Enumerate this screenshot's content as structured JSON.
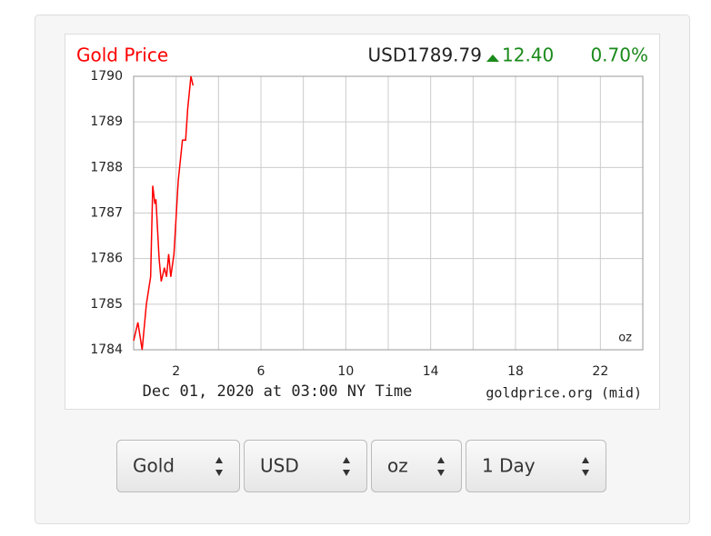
{
  "chart_data": {
    "type": "line",
    "title": "Gold Price",
    "price": "USD1789.79",
    "change": "12.40",
    "change_pct": "0.70%",
    "x": [
      0,
      0.2,
      0.4,
      0.6,
      0.8,
      0.9,
      1.0,
      1.05,
      1.2,
      1.3,
      1.45,
      1.55,
      1.65,
      1.75,
      1.9,
      2.1,
      2.3,
      2.45,
      2.55,
      2.7,
      2.8
    ],
    "series": [
      {
        "color": "#ff0000",
        "values": [
          1784.2,
          1784.6,
          1784.0,
          1785.0,
          1785.6,
          1787.6,
          1787.2,
          1787.3,
          1786.0,
          1785.5,
          1785.8,
          1785.6,
          1786.1,
          1785.6,
          1786.1,
          1787.7,
          1788.6,
          1788.6,
          1789.3,
          1790.0,
          1789.8
        ]
      }
    ],
    "xlim": [
      0,
      24
    ],
    "xticks": [
      2,
      6,
      10,
      14,
      18,
      22
    ],
    "x_minor_grid": [
      0,
      4,
      8,
      12,
      16,
      20,
      24
    ],
    "ylim": [
      1784,
      1790
    ],
    "yticks": [
      1784,
      1785,
      1786,
      1787,
      1788,
      1789,
      1790
    ],
    "grid": true,
    "unit": "oz",
    "caption": "Dec 01, 2020 at 03:00 NY Time",
    "source": "goldprice.org (mid)"
  },
  "controls": [
    "Gold",
    "USD",
    "oz",
    "1 Day"
  ]
}
